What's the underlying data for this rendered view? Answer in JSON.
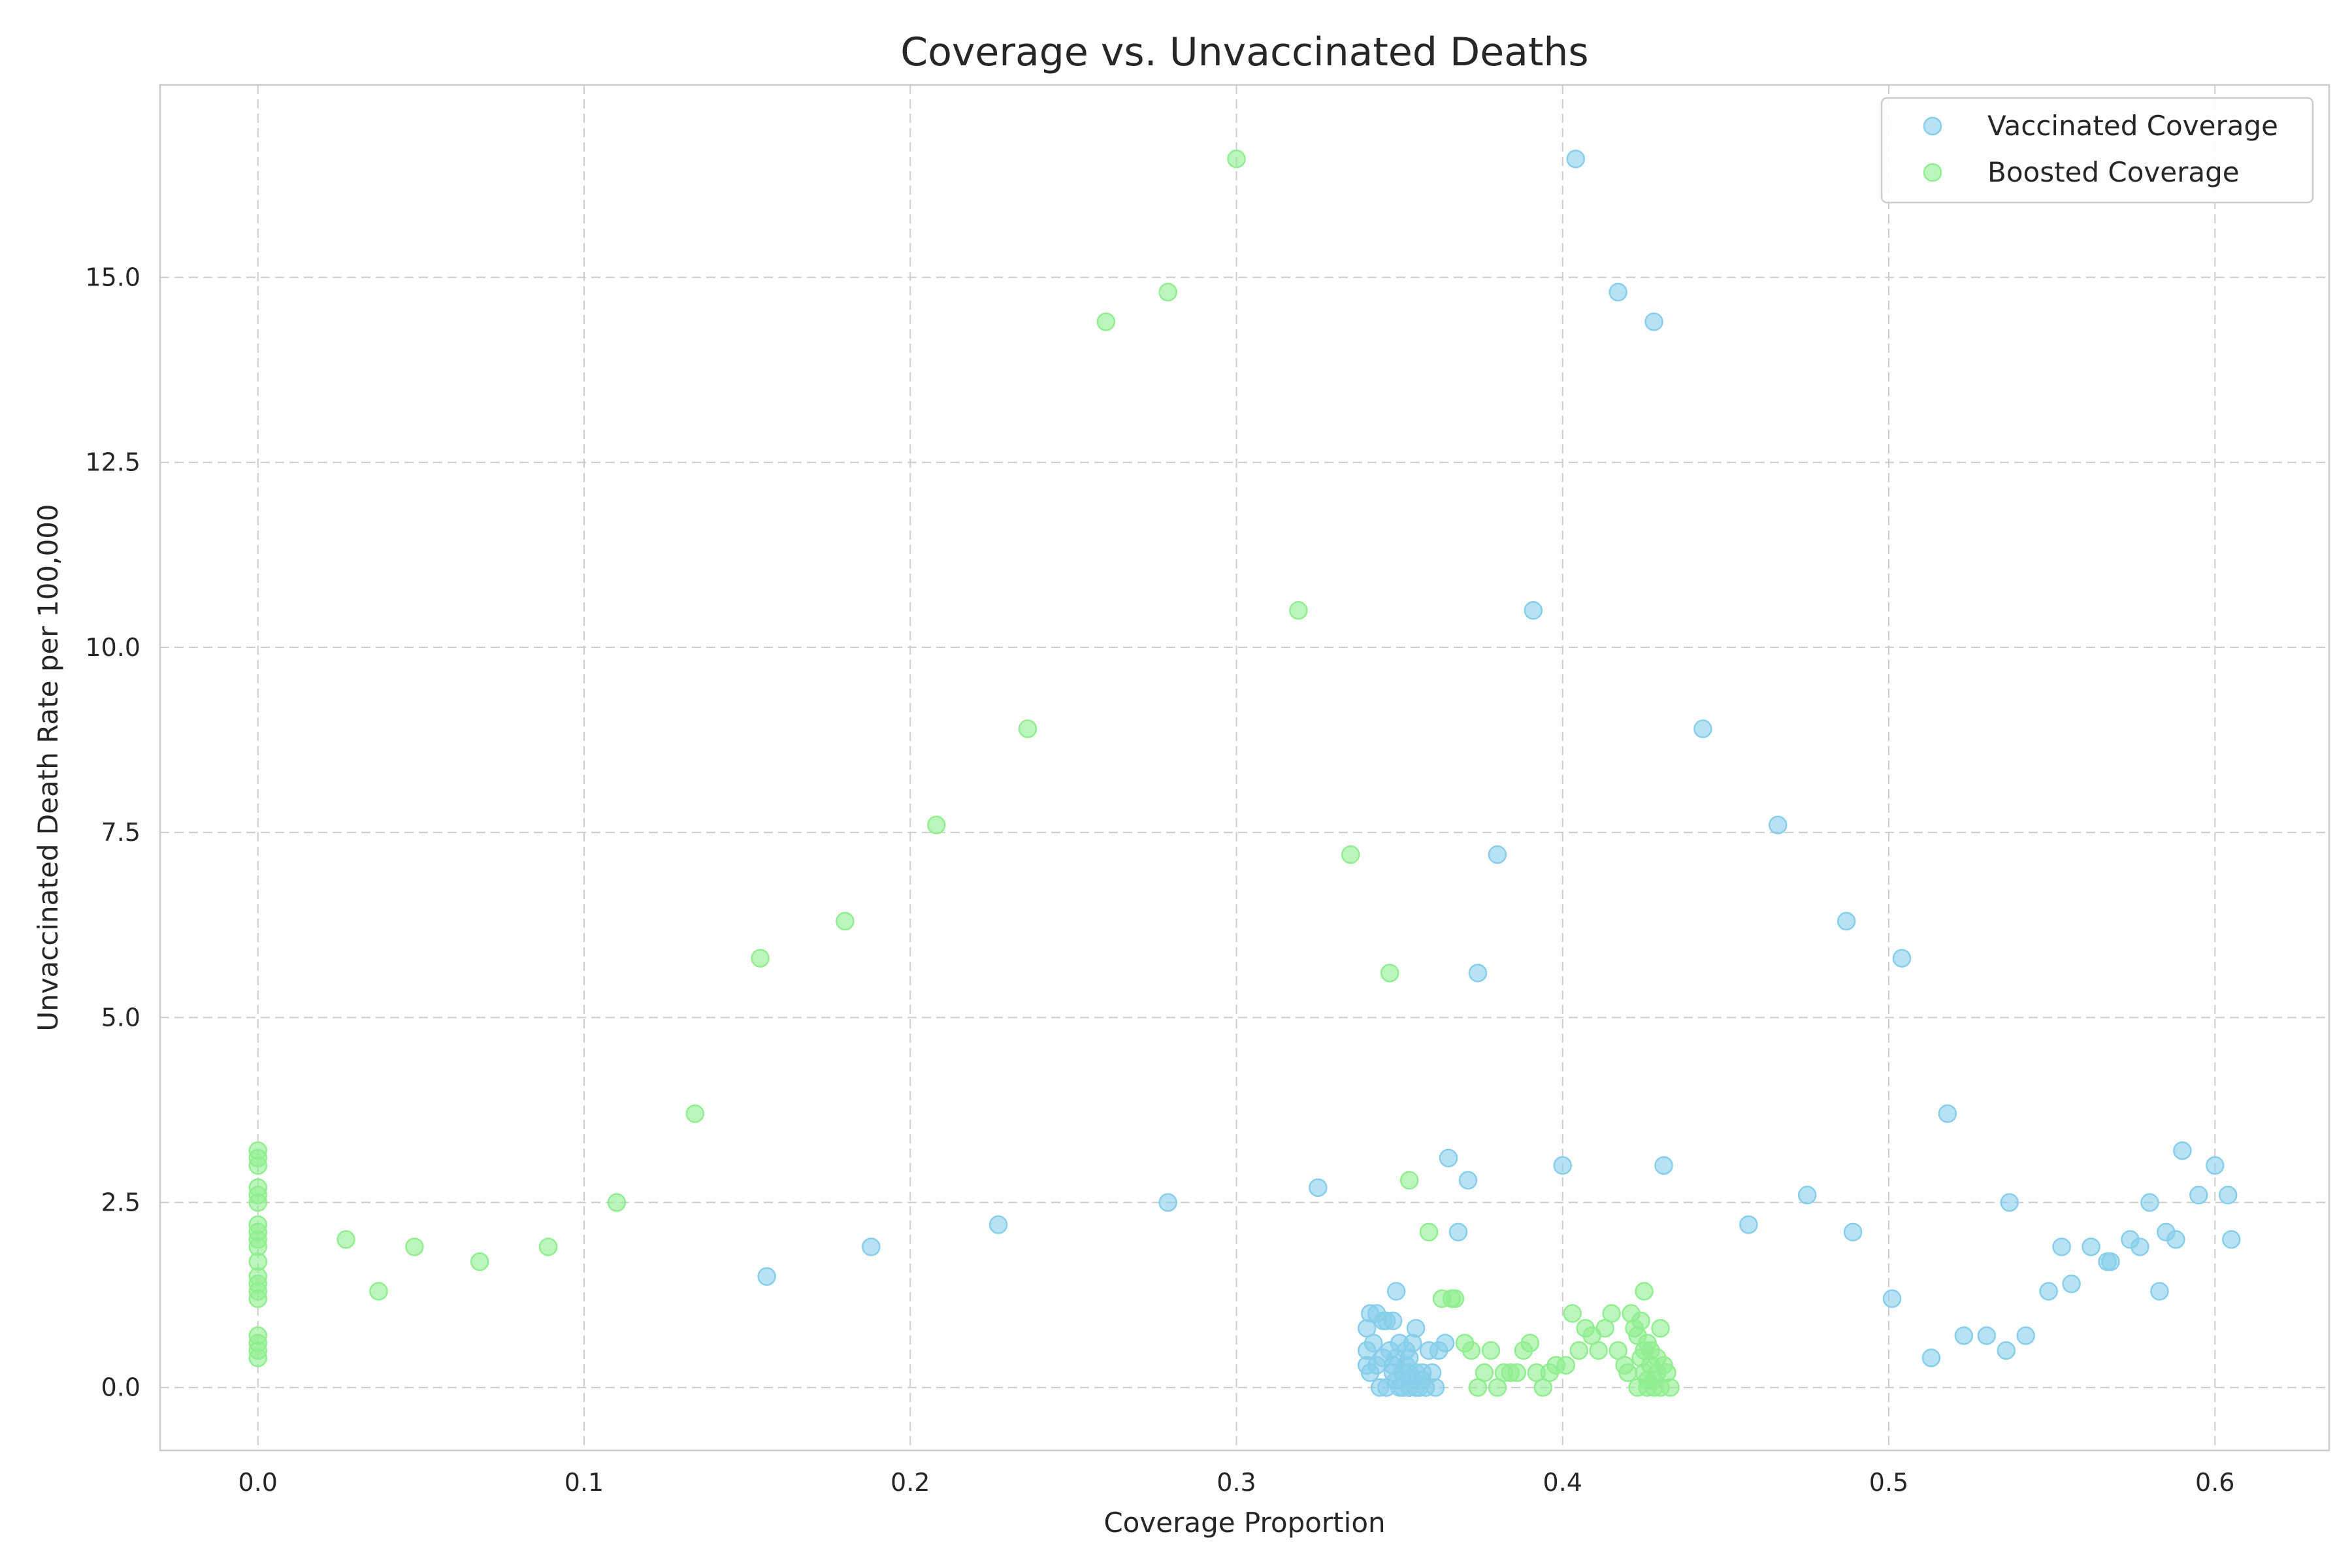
{
  "chart_data": {
    "type": "scatter",
    "title": "Coverage vs. Unvaccinated Deaths",
    "xlabel": "Coverage Proportion",
    "ylabel": "Unvaccinated Death Rate per 100,000",
    "xlim": [
      -0.03,
      0.635
    ],
    "ylim": [
      -0.85,
      17.6
    ],
    "xticks": [
      0.0,
      0.1,
      0.2,
      0.3,
      0.4,
      0.5,
      0.6
    ],
    "xtick_labels": [
      "0.0",
      "0.1",
      "0.2",
      "0.3",
      "0.4",
      "0.5",
      "0.6"
    ],
    "yticks": [
      0.0,
      2.5,
      5.0,
      7.5,
      10.0,
      12.5,
      15.0
    ],
    "ytick_labels": [
      "0.0",
      "2.5",
      "5.0",
      "7.5",
      "10.0",
      "12.5",
      "15.0"
    ],
    "grid": true,
    "legend_position": "top-right",
    "series": [
      {
        "name": "Vaccinated Coverage",
        "color": "#87ceeb",
        "points": [
          [
            0.404,
            16.6
          ],
          [
            0.417,
            14.8
          ],
          [
            0.428,
            14.4
          ],
          [
            0.391,
            10.5
          ],
          [
            0.443,
            8.9
          ],
          [
            0.466,
            7.6
          ],
          [
            0.38,
            7.2
          ],
          [
            0.487,
            6.3
          ],
          [
            0.504,
            5.8
          ],
          [
            0.374,
            5.6
          ],
          [
            0.518,
            3.7
          ],
          [
            0.365,
            3.1
          ],
          [
            0.371,
            2.8
          ],
          [
            0.4,
            3.0
          ],
          [
            0.431,
            3.0
          ],
          [
            0.475,
            2.6
          ],
          [
            0.325,
            2.7
          ],
          [
            0.279,
            2.5
          ],
          [
            0.457,
            2.2
          ],
          [
            0.368,
            2.1
          ],
          [
            0.489,
            2.1
          ],
          [
            0.227,
            2.2
          ],
          [
            0.188,
            1.9
          ],
          [
            0.156,
            1.5
          ],
          [
            0.501,
            1.2
          ],
          [
            0.513,
            0.4
          ],
          [
            0.523,
            0.7
          ],
          [
            0.53,
            0.7
          ],
          [
            0.536,
            0.5
          ],
          [
            0.542,
            0.7
          ],
          [
            0.549,
            1.3
          ],
          [
            0.553,
            1.9
          ],
          [
            0.556,
            1.4
          ],
          [
            0.562,
            1.9
          ],
          [
            0.567,
            1.7
          ],
          [
            0.568,
            1.7
          ],
          [
            0.574,
            2.0
          ],
          [
            0.577,
            1.9
          ],
          [
            0.58,
            2.5
          ],
          [
            0.583,
            1.3
          ],
          [
            0.585,
            2.1
          ],
          [
            0.588,
            2.0
          ],
          [
            0.59,
            3.2
          ],
          [
            0.595,
            2.6
          ],
          [
            0.6,
            3.0
          ],
          [
            0.604,
            2.6
          ],
          [
            0.605,
            2.0
          ],
          [
            0.537,
            2.5
          ],
          [
            0.34,
            0.8
          ],
          [
            0.341,
            1.0
          ],
          [
            0.343,
            1.0
          ],
          [
            0.345,
            0.9
          ],
          [
            0.346,
            0.9
          ],
          [
            0.348,
            0.9
          ],
          [
            0.349,
            1.3
          ],
          [
            0.34,
            0.5
          ],
          [
            0.34,
            0.3
          ],
          [
            0.341,
            0.2
          ],
          [
            0.342,
            0.6
          ],
          [
            0.343,
            0.3
          ],
          [
            0.344,
            0.0
          ],
          [
            0.345,
            0.4
          ],
          [
            0.346,
            0.0
          ],
          [
            0.347,
            0.5
          ],
          [
            0.348,
            0.3
          ],
          [
            0.349,
            0.1
          ],
          [
            0.35,
            0.6
          ],
          [
            0.351,
            0.2
          ],
          [
            0.351,
            0.0
          ],
          [
            0.352,
            0.5
          ],
          [
            0.352,
            0.3
          ],
          [
            0.353,
            0.0
          ],
          [
            0.353,
            0.4
          ],
          [
            0.354,
            0.6
          ],
          [
            0.354,
            0.1
          ],
          [
            0.355,
            0.2
          ],
          [
            0.355,
            0.8
          ],
          [
            0.356,
            0.0
          ],
          [
            0.357,
            0.2
          ],
          [
            0.357,
            0.1
          ],
          [
            0.358,
            0.0
          ],
          [
            0.359,
            0.5
          ],
          [
            0.36,
            0.2
          ],
          [
            0.361,
            0.0
          ],
          [
            0.362,
            0.5
          ],
          [
            0.364,
            0.6
          ],
          [
            0.35,
            0.0
          ],
          [
            0.349,
            0.4
          ],
          [
            0.348,
            0.2
          ],
          [
            0.353,
            0.2
          ],
          [
            0.355,
            0.0
          ]
        ]
      },
      {
        "name": "Boosted Coverage",
        "color": "#90ee90",
        "points": [
          [
            0.3,
            16.6
          ],
          [
            0.279,
            14.8
          ],
          [
            0.26,
            14.4
          ],
          [
            0.319,
            10.5
          ],
          [
            0.236,
            8.9
          ],
          [
            0.208,
            7.6
          ],
          [
            0.335,
            7.2
          ],
          [
            0.18,
            6.3
          ],
          [
            0.154,
            5.8
          ],
          [
            0.347,
            5.6
          ],
          [
            0.134,
            3.7
          ],
          [
            0.353,
            2.8
          ],
          [
            0.11,
            2.5
          ],
          [
            0.359,
            2.1
          ],
          [
            0.027,
            2.0
          ],
          [
            0.048,
            1.9
          ],
          [
            0.089,
            1.9
          ],
          [
            0.068,
            1.7
          ],
          [
            0.037,
            1.3
          ],
          [
            0.363,
            1.2
          ],
          [
            0.366,
            1.2
          ],
          [
            0.367,
            1.2
          ],
          [
            0.0,
            3.2
          ],
          [
            0.0,
            3.1
          ],
          [
            0.0,
            3.0
          ],
          [
            0.0,
            2.7
          ],
          [
            0.0,
            2.6
          ],
          [
            0.0,
            2.5
          ],
          [
            0.0,
            2.2
          ],
          [
            0.0,
            2.1
          ],
          [
            0.0,
            2.0
          ],
          [
            0.0,
            1.9
          ],
          [
            0.0,
            1.7
          ],
          [
            0.0,
            1.5
          ],
          [
            0.0,
            1.4
          ],
          [
            0.0,
            1.3
          ],
          [
            0.0,
            1.2
          ],
          [
            0.0,
            0.7
          ],
          [
            0.0,
            0.6
          ],
          [
            0.0,
            0.5
          ],
          [
            0.0,
            0.4
          ],
          [
            0.37,
            0.6
          ],
          [
            0.372,
            0.5
          ],
          [
            0.374,
            0.0
          ],
          [
            0.376,
            0.2
          ],
          [
            0.378,
            0.5
          ],
          [
            0.38,
            0.0
          ],
          [
            0.382,
            0.2
          ],
          [
            0.384,
            0.2
          ],
          [
            0.386,
            0.2
          ],
          [
            0.388,
            0.5
          ],
          [
            0.39,
            0.6
          ],
          [
            0.392,
            0.2
          ],
          [
            0.394,
            0.0
          ],
          [
            0.396,
            0.2
          ],
          [
            0.398,
            0.3
          ],
          [
            0.401,
            0.3
          ],
          [
            0.403,
            1.0
          ],
          [
            0.405,
            0.5
          ],
          [
            0.407,
            0.8
          ],
          [
            0.409,
            0.7
          ],
          [
            0.411,
            0.5
          ],
          [
            0.413,
            0.8
          ],
          [
            0.415,
            1.0
          ],
          [
            0.417,
            0.5
          ],
          [
            0.419,
            0.3
          ],
          [
            0.42,
            0.2
          ],
          [
            0.421,
            1.0
          ],
          [
            0.422,
            0.8
          ],
          [
            0.423,
            0.7
          ],
          [
            0.423,
            0.0
          ],
          [
            0.424,
            0.4
          ],
          [
            0.424,
            0.9
          ],
          [
            0.425,
            1.3
          ],
          [
            0.425,
            0.2
          ],
          [
            0.426,
            0.6
          ],
          [
            0.426,
            0.0
          ],
          [
            0.427,
            0.3
          ],
          [
            0.427,
            0.5
          ],
          [
            0.428,
            0.1
          ],
          [
            0.428,
            0.0
          ],
          [
            0.429,
            0.4
          ],
          [
            0.429,
            0.2
          ],
          [
            0.43,
            0.8
          ],
          [
            0.43,
            0.0
          ],
          [
            0.431,
            0.3
          ],
          [
            0.432,
            0.2
          ],
          [
            0.433,
            0.0
          ],
          [
            0.426,
            0.1
          ],
          [
            0.425,
            0.5
          ]
        ]
      }
    ]
  }
}
